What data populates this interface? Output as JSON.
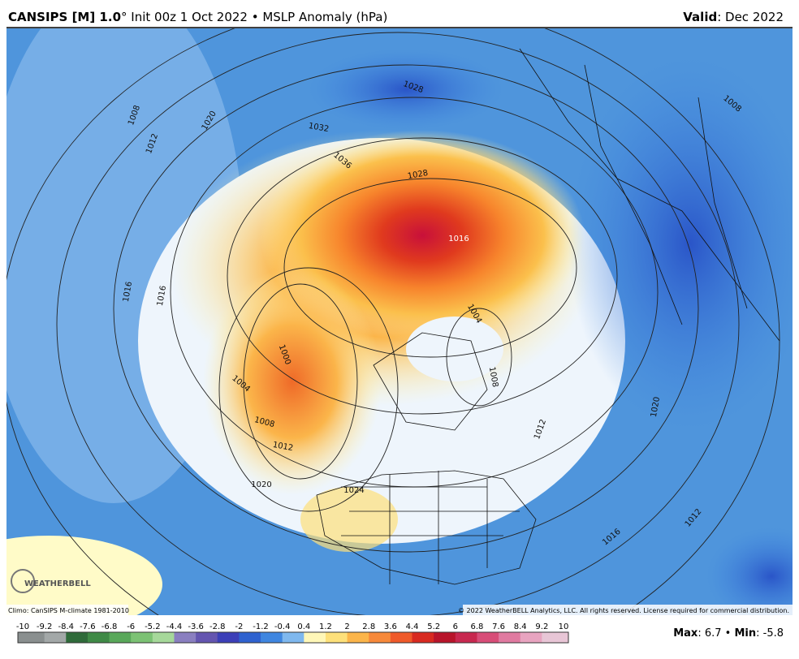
{
  "header": {
    "title_bold": "CANSIPS [M] 1.0",
    "title_rest": "° Init 00z 1 Oct 2022 • MSLP Anomaly (hPa)",
    "valid_label": "Valid",
    "valid_value": ": Dec 2022"
  },
  "map": {
    "contour_labels": [
      "1008",
      "1012",
      "1020",
      "1028",
      "1032",
      "1036",
      "1028",
      "1016",
      "1016",
      "1016",
      "1004",
      "1000",
      "1008",
      "1004",
      "1008",
      "1012",
      "1020",
      "1024",
      "1020",
      "1012",
      "1016",
      "1012",
      "1008"
    ],
    "logo": "WEATHERBELL"
  },
  "footer": {
    "climo": "Climo: CanSIPS M-climate 1981-2010",
    "copyright": "© 2022 WeatherBELL Analytics, LLC. All rights reserved. License required for commercial distribution.",
    "colorbar_labels": [
      -10,
      -9.2,
      -8.4,
      -7.6,
      -6.8,
      -6,
      -5.2,
      -4.4,
      -3.6,
      -2.8,
      -2,
      -1.2,
      -0.4,
      0.4,
      1.2,
      2,
      2.8,
      3.6,
      4.4,
      5.2,
      6,
      6.8,
      7.6,
      8.4,
      9.2,
      10
    ],
    "colorbar_colors": [
      "#8a8f8f",
      "#a3a8a8",
      "#2f6b3a",
      "#3f8a46",
      "#59a85a",
      "#7cc274",
      "#a6d89a",
      "#8a7fc0",
      "#6455b0",
      "#3c3fb8",
      "#2f62cf",
      "#3f86e0",
      "#7fb8ee",
      "#fff7b8",
      "#fde07a",
      "#fbb54a",
      "#f7893a",
      "#ef5a2a",
      "#d82a20",
      "#b8142a",
      "#c8284f",
      "#d84d78",
      "#e07aa0",
      "#e8a4c0",
      "#e8c6d6"
    ],
    "stats": [
      "Max",
      ": 6.7 • ",
      "Min",
      ": -5.8"
    ]
  }
}
